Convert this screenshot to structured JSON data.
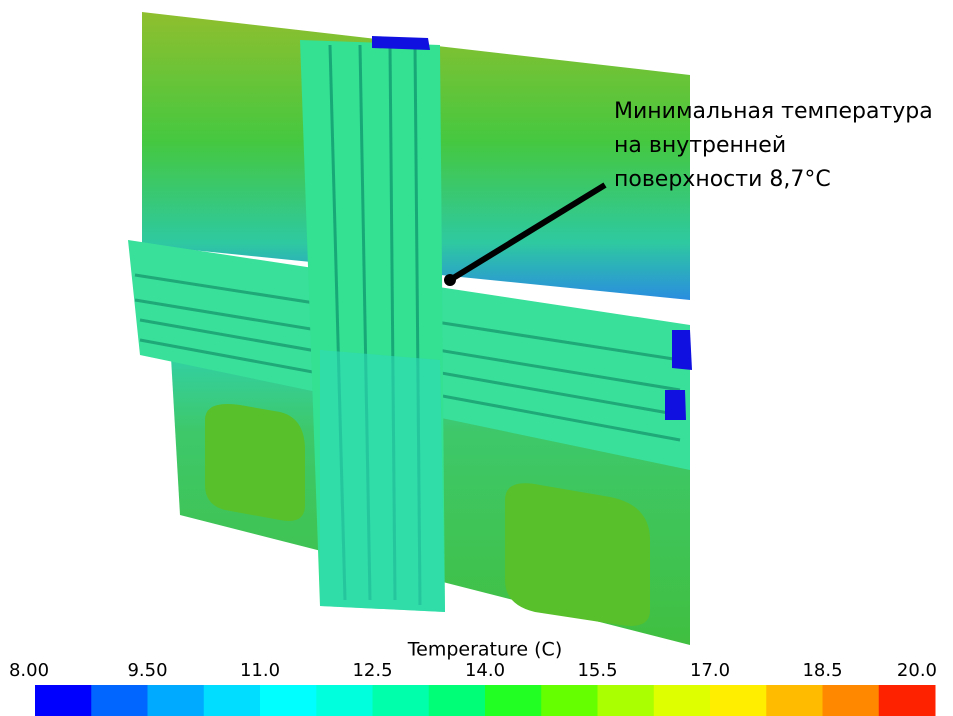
{
  "annotation": {
    "lines": [
      "Минимальная температура",
      "на внутренней",
      "поверхности 8,7°C"
    ]
  },
  "colorbar": {
    "title": "Temperature (C)",
    "lim": [
      8,
      20
    ],
    "ticks": [
      {
        "value": 8,
        "label": "8.00"
      },
      {
        "value": 9.5,
        "label": "9.50"
      },
      {
        "value": 11,
        "label": "11.0"
      },
      {
        "value": 12.5,
        "label": "12.5"
      },
      {
        "value": 14,
        "label": "14.0"
      },
      {
        "value": 15.5,
        "label": "15.5"
      },
      {
        "value": 17,
        "label": "17.0"
      },
      {
        "value": 18.5,
        "label": "18.5"
      },
      {
        "value": 20,
        "label": "20.0"
      }
    ],
    "colors": [
      "#0000ff",
      "#0066ff",
      "#00aaff",
      "#00ddff",
      "#00ffff",
      "#00ffdd",
      "#00ffaa",
      "#00ff77",
      "#22ff22",
      "#66ff00",
      "#aaff00",
      "#ddff00",
      "#ffee00",
      "#ffbb00",
      "#ff8800",
      "#ff2200"
    ]
  }
}
